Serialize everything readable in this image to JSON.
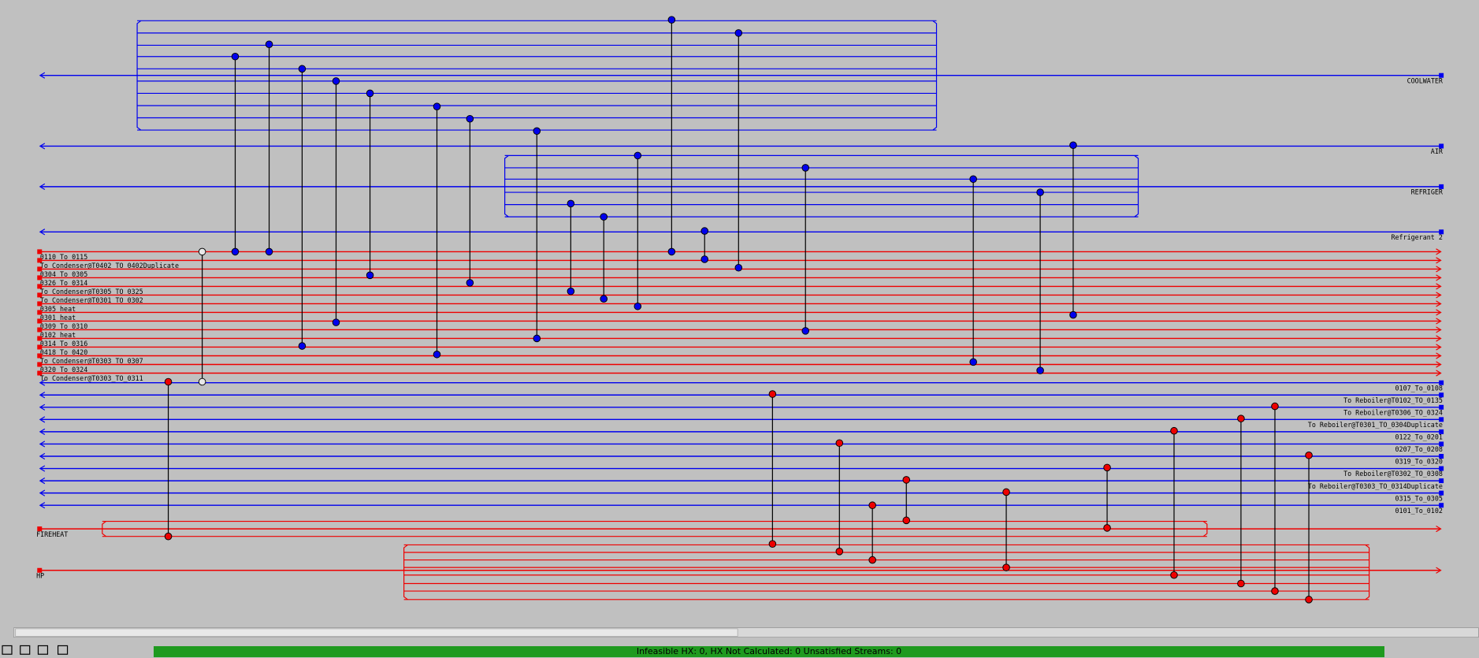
{
  "grid": {
    "cold_utilities": [
      {
        "name": "COOLWATER"
      },
      {
        "name": "AIR"
      },
      {
        "name": "REFRIGER"
      },
      {
        "name": "Refrigerant 2"
      }
    ],
    "hot_streams": [
      {
        "name": "0110_To_0115"
      },
      {
        "name": "To Condenser@T0402_TO_0402Duplicate"
      },
      {
        "name": "0304_To_0305"
      },
      {
        "name": "0326_To_0314"
      },
      {
        "name": "To Condenser@T0305_TO_0325"
      },
      {
        "name": "To Condenser@T0301_TO_0302"
      },
      {
        "name": "0305 heat"
      },
      {
        "name": "0301 heat"
      },
      {
        "name": "0309_To_0310"
      },
      {
        "name": "0102 heat"
      },
      {
        "name": "0314_To_0316"
      },
      {
        "name": "0418_To_0420"
      },
      {
        "name": "To Condenser@T0303_TO_0307"
      },
      {
        "name": "0320_To_0324"
      },
      {
        "name": "To Condenser@T0303_TO_0311"
      }
    ],
    "cold_streams": [
      {
        "name": "0107_To_0108"
      },
      {
        "name": "To Reboiler@T0102_TO_0135"
      },
      {
        "name": "To Reboiler@T0306_TO_0324"
      },
      {
        "name": "To Reboiler@T0301_TO_0304Duplicate"
      },
      {
        "name": "0122_To_0201"
      },
      {
        "name": "0207_To_0208"
      },
      {
        "name": "0319_To_0320"
      },
      {
        "name": "To Reboiler@T0302_TO_0308"
      },
      {
        "name": "To Reboiler@T0303_TO_0314Duplicate"
      },
      {
        "name": "0315_To_0305"
      },
      {
        "name": "0101_To_0102"
      }
    ],
    "hot_utilities": [
      {
        "name": "FIREHEAT"
      },
      {
        "name": "HP"
      }
    ]
  },
  "status_bar": {
    "text": "Infeasible HX: 0, HX Not Calculated: 0      Unsatisfied Streams: 0"
  }
}
